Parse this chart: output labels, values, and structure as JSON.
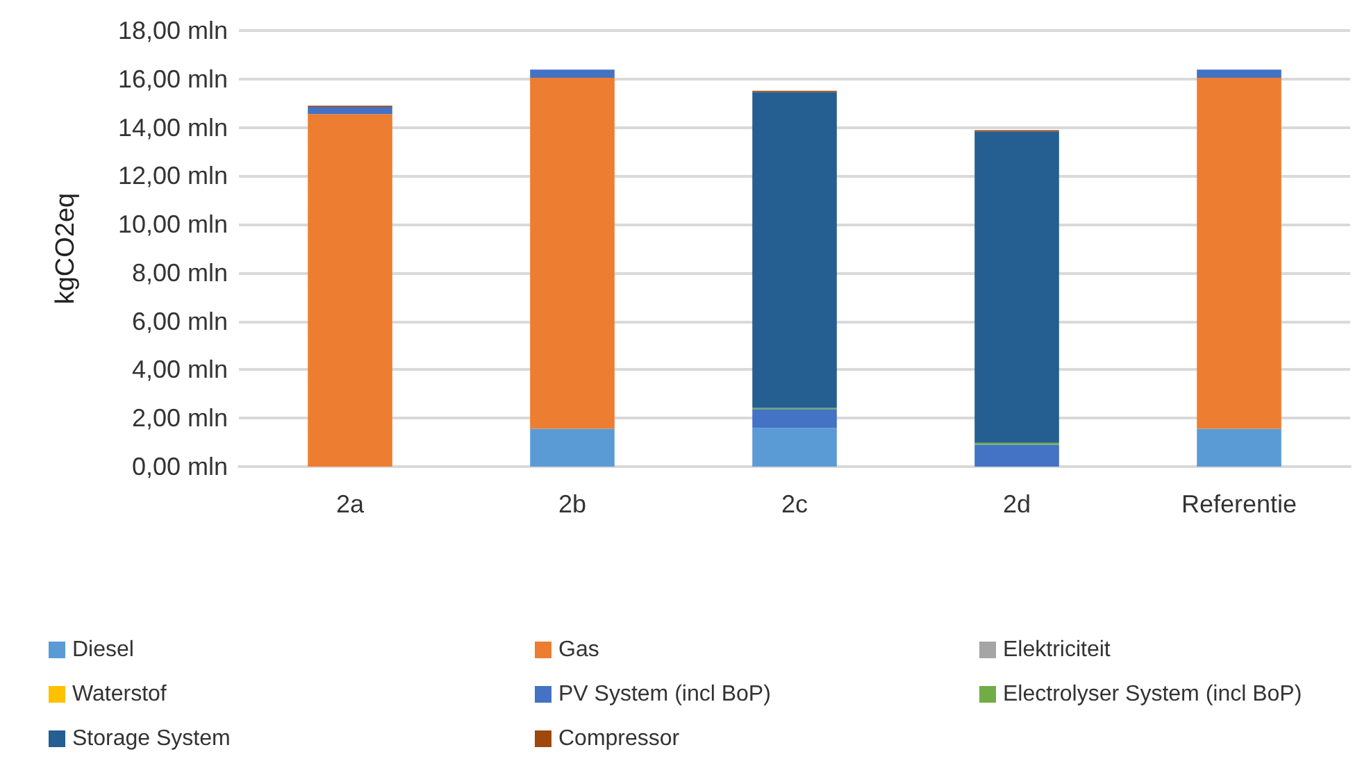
{
  "chart_data": {
    "type": "bar",
    "stacked": true,
    "ylabel": "kgCO2eq",
    "categories": [
      "2a",
      "2b",
      "2c",
      "2d",
      "Referentie"
    ],
    "series": [
      {
        "name": "Diesel",
        "color": "#5b9bd5",
        "values": [
          0,
          1.56,
          1.6,
          0,
          1.56
        ]
      },
      {
        "name": "Gas",
        "color": "#ed7d31",
        "values": [
          14.55,
          14.49,
          0,
          0,
          14.49
        ]
      },
      {
        "name": "Elektriciteit",
        "color": "#a5a5a5",
        "values": [
          0,
          0,
          0,
          0,
          0
        ]
      },
      {
        "name": "Waterstof",
        "color": "#ffc000",
        "values": [
          0,
          0,
          0,
          0,
          0
        ]
      },
      {
        "name": "PV System (incl BoP)",
        "color": "#4472c4",
        "values": [
          0.3,
          0.34,
          0.77,
          0.9,
          0.34
        ]
      },
      {
        "name": "Electrolyser System (incl BoP)",
        "color": "#70ad47",
        "values": [
          0,
          0,
          0.05,
          0.08,
          0
        ]
      },
      {
        "name": "Storage System",
        "color": "#255e91",
        "values": [
          0,
          0,
          13.04,
          12.86,
          0
        ]
      },
      {
        "name": "Compressor",
        "color": "#9e480e",
        "values": [
          0.05,
          0,
          0.05,
          0.05,
          0
        ]
      }
    ],
    "ylim": [
      0,
      18
    ],
    "yticks": [
      {
        "value": 0,
        "label": "0,00 mln"
      },
      {
        "value": 2,
        "label": "2,00 mln"
      },
      {
        "value": 4,
        "label": "4,00 mln"
      },
      {
        "value": 6,
        "label": "6,00 mln"
      },
      {
        "value": 8,
        "label": "8,00 mln"
      },
      {
        "value": 10,
        "label": "10,00 mln"
      },
      {
        "value": 12,
        "label": "12,00 mln"
      },
      {
        "value": 14,
        "label": "14,00 mln"
      },
      {
        "value": 16,
        "label": "16,00 mln"
      },
      {
        "value": 18,
        "label": "18,00 mln"
      }
    ],
    "grid": "y",
    "legend": "bottom"
  }
}
